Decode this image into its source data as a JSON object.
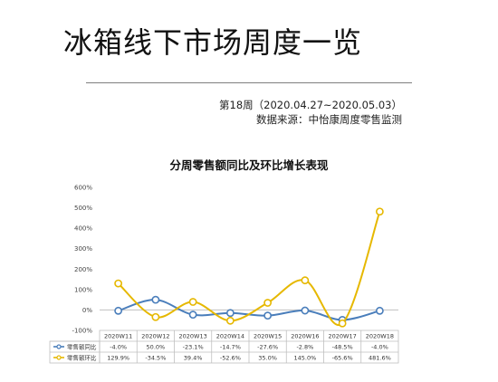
{
  "header": {
    "title": "冰箱线下市场周度一览",
    "week_line": "第18周（2020.04.27~2020.05.03）",
    "source_line": "数据来源：中怡康周度零售监测"
  },
  "chart_data": {
    "type": "line",
    "title": "分周零售额同比及环比增长表现",
    "categories": [
      "2020W11",
      "2020W12",
      "2020W13",
      "2020W14",
      "2020W15",
      "2020W16",
      "2020W17",
      "2020W18"
    ],
    "ylim": [
      -100,
      600
    ],
    "yticks": [
      "600%",
      "500%",
      "400%",
      "300%",
      "200%",
      "100%",
      "0%",
      "-100%"
    ],
    "ytick_values": [
      600,
      500,
      400,
      300,
      200,
      100,
      0,
      -100
    ],
    "grid": false,
    "legend": "data-table",
    "series": [
      {
        "name": "零售额同比",
        "color": "#4a7ebb",
        "values": [
          -4.0,
          50.0,
          -23.1,
          -14.7,
          -27.6,
          -2.8,
          -48.5,
          -4.0
        ],
        "labels": [
          "-4.0%",
          "50.0%",
          "-23.1%",
          "-14.7%",
          "-27.6%",
          "-2.8%",
          "-48.5%",
          "-4.0%"
        ]
      },
      {
        "name": "零售额环比",
        "color": "#e6b800",
        "values": [
          129.9,
          -34.5,
          39.4,
          -52.6,
          35.0,
          145.0,
          -65.6,
          481.6
        ],
        "labels": [
          "129.9%",
          "-34.5%",
          "39.4%",
          "-52.6%",
          "35.0%",
          "145.0%",
          "-65.6%",
          "481.6%"
        ]
      }
    ]
  }
}
